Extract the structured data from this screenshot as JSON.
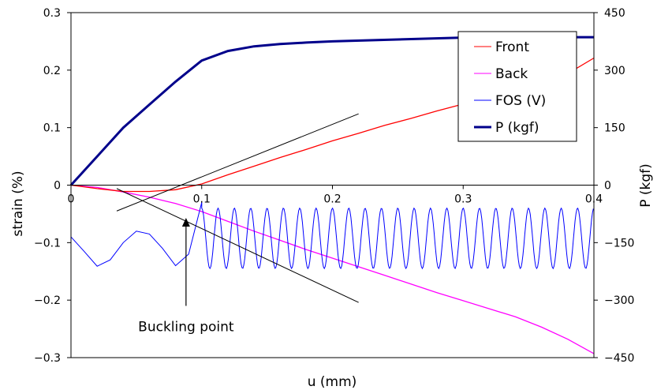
{
  "chart_data": {
    "type": "line",
    "title": "",
    "xlabel": "u (mm)",
    "ylabel_left": "strain (%)",
    "ylabel_right": "P (kgf)",
    "xlim": [
      0,
      0.4
    ],
    "ylim_left": [
      -0.3,
      0.3
    ],
    "ylim_right": [
      -450,
      450
    ],
    "x_ticks": [
      "0",
      "0.1",
      "0.2",
      "0.3",
      "0.4"
    ],
    "y_left_ticks": [
      "0.3",
      "0.2",
      "0.1",
      "0",
      "-0.1",
      "-0.2",
      "-0.3"
    ],
    "y_right_ticks": [
      "450",
      "300",
      "150",
      "0",
      "-150",
      "-300",
      "-450"
    ],
    "grid": false,
    "legend_position": "top-right",
    "series": [
      {
        "name": "Front",
        "color": "#ff0000",
        "axis": "left",
        "x": [
          0,
          0.02,
          0.04,
          0.06,
          0.08,
          0.1,
          0.12,
          0.14,
          0.16,
          0.18,
          0.2,
          0.22,
          0.24,
          0.26,
          0.28,
          0.3,
          0.32,
          0.34,
          0.36,
          0.38,
          0.4
        ],
        "y": [
          0,
          -0.006,
          -0.011,
          -0.011,
          -0.008,
          0.002,
          0.018,
          0.033,
          0.048,
          0.062,
          0.077,
          0.09,
          0.104,
          0.116,
          0.129,
          0.141,
          0.153,
          0.166,
          0.18,
          0.194,
          0.221
        ]
      },
      {
        "name": "Back",
        "color": "#ff00ff",
        "axis": "left",
        "x": [
          0,
          0.02,
          0.04,
          0.06,
          0.08,
          0.1,
          0.12,
          0.14,
          0.16,
          0.18,
          0.2,
          0.22,
          0.24,
          0.26,
          0.28,
          0.3,
          0.32,
          0.34,
          0.36,
          0.38,
          0.4
        ],
        "y": [
          0,
          -0.004,
          -0.012,
          -0.021,
          -0.032,
          -0.046,
          -0.063,
          -0.08,
          -0.096,
          -0.112,
          -0.127,
          -0.142,
          -0.157,
          -0.172,
          -0.187,
          -0.201,
          -0.215,
          -0.229,
          -0.247,
          -0.268,
          -0.293
        ]
      },
      {
        "name": "FOS (V)",
        "color": "#0000ff",
        "axis": "left",
        "x": [
          0,
          0.01,
          0.02,
          0.03,
          0.04,
          0.05,
          0.06,
          0.07,
          0.08,
          0.09,
          0.1
        ],
        "y": [
          -0.09,
          -0.115,
          -0.141,
          -0.13,
          -0.1,
          -0.08,
          -0.085,
          -0.11,
          -0.14,
          -0.12,
          -0.03
        ],
        "oscillation": {
          "x_start": 0.1,
          "x_end": 0.4,
          "y_min": -0.145,
          "y_max": -0.04,
          "period_mm": 0.0125
        }
      },
      {
        "name": "P (kgf)",
        "color": "#00008b",
        "axis": "right",
        "x": [
          0,
          0.02,
          0.04,
          0.06,
          0.08,
          0.1,
          0.12,
          0.14,
          0.16,
          0.18,
          0.2,
          0.25,
          0.3,
          0.35,
          0.4
        ],
        "y": [
          0,
          75,
          150,
          210,
          270,
          325,
          350,
          362,
          368,
          372,
          375,
          380,
          385,
          386,
          386
        ]
      }
    ],
    "annotations": [
      {
        "text": "Buckling point",
        "arrow_x": 0.088,
        "arrow_from_y": -0.21,
        "arrow_to_y": -0.057
      }
    ],
    "tangent_lines": [
      {
        "x": [
          0.035,
          0.22
        ],
        "y": [
          -0.045,
          0.124
        ]
      },
      {
        "x": [
          0.035,
          0.22
        ],
        "y": [
          -0.006,
          -0.204
        ]
      }
    ]
  }
}
